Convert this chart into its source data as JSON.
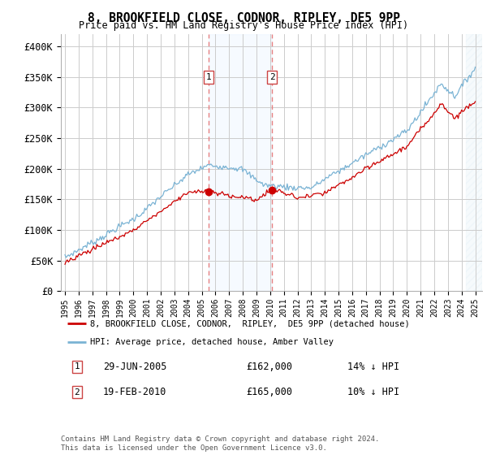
{
  "title": "8, BROOKFIELD CLOSE, CODNOR, RIPLEY, DE5 9PP",
  "subtitle": "Price paid vs. HM Land Registry's House Price Index (HPI)",
  "ylim": [
    0,
    420000
  ],
  "yticks": [
    0,
    50000,
    100000,
    150000,
    200000,
    250000,
    300000,
    350000,
    400000
  ],
  "ytick_labels": [
    "£0",
    "£50K",
    "£100K",
    "£150K",
    "£200K",
    "£250K",
    "£300K",
    "£350K",
    "£400K"
  ],
  "hpi_color": "#7ab3d4",
  "price_color": "#cc0000",
  "sale1_date": 2005.49,
  "sale1_price": 162000,
  "sale2_date": 2010.13,
  "sale2_price": 165000,
  "sale1_label": "29-JUN-2005",
  "sale2_label": "19-FEB-2010",
  "sale1_hpi_pct": "14% ↓ HPI",
  "sale2_hpi_pct": "10% ↓ HPI",
  "sale1_price_str": "£162,000",
  "sale2_price_str": "£165,000",
  "legend_line1": "8, BROOKFIELD CLOSE, CODNOR,  RIPLEY,  DE5 9PP (detached house)",
  "legend_line2": "HPI: Average price, detached house, Amber Valley",
  "footnote": "Contains HM Land Registry data © Crown copyright and database right 2024.\nThis data is licensed under the Open Government Licence v3.0.",
  "background_color": "#ffffff",
  "grid_color": "#cccccc",
  "shade_color": "#ddeeff",
  "hatch_color": "#c8dff0",
  "sale_vline_color": "#e88080",
  "xtick_years": [
    1995,
    1996,
    1997,
    1998,
    1999,
    2000,
    2001,
    2002,
    2003,
    2004,
    2005,
    2006,
    2007,
    2008,
    2009,
    2010,
    2011,
    2012,
    2013,
    2014,
    2015,
    2016,
    2017,
    2018,
    2019,
    2020,
    2021,
    2022,
    2023,
    2024,
    2025
  ]
}
